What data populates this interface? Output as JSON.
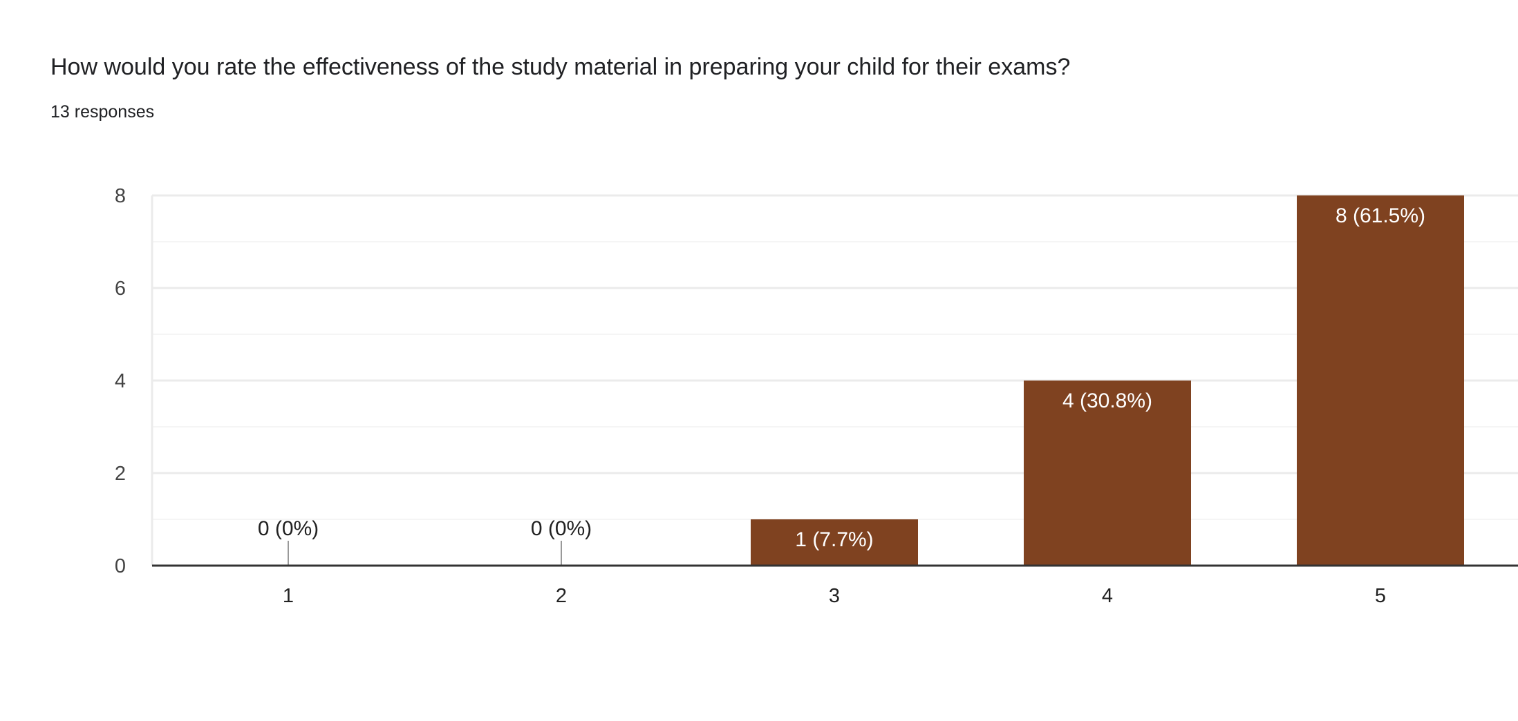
{
  "header": {
    "title": "How would you rate the effectiveness of the study material in preparing your child for their exams?",
    "subtitle": "13 responses"
  },
  "chart_data": {
    "type": "bar",
    "title": "How would you rate the effectiveness of the study material in preparing your child for their exams?",
    "categories": [
      "1",
      "2",
      "3",
      "4",
      "5"
    ],
    "values": [
      0,
      0,
      1,
      4,
      8
    ],
    "data_labels": [
      "0 (0%)",
      "0 (0%)",
      "1 (7.7%)",
      "4 (30.8%)",
      "8 (61.5%)"
    ],
    "yticks": [
      "0",
      "2",
      "4",
      "6",
      "8"
    ],
    "ylim": [
      0,
      8
    ],
    "xlabel": "",
    "ylabel": "",
    "grid": true,
    "bar_color": "#7f4220"
  }
}
